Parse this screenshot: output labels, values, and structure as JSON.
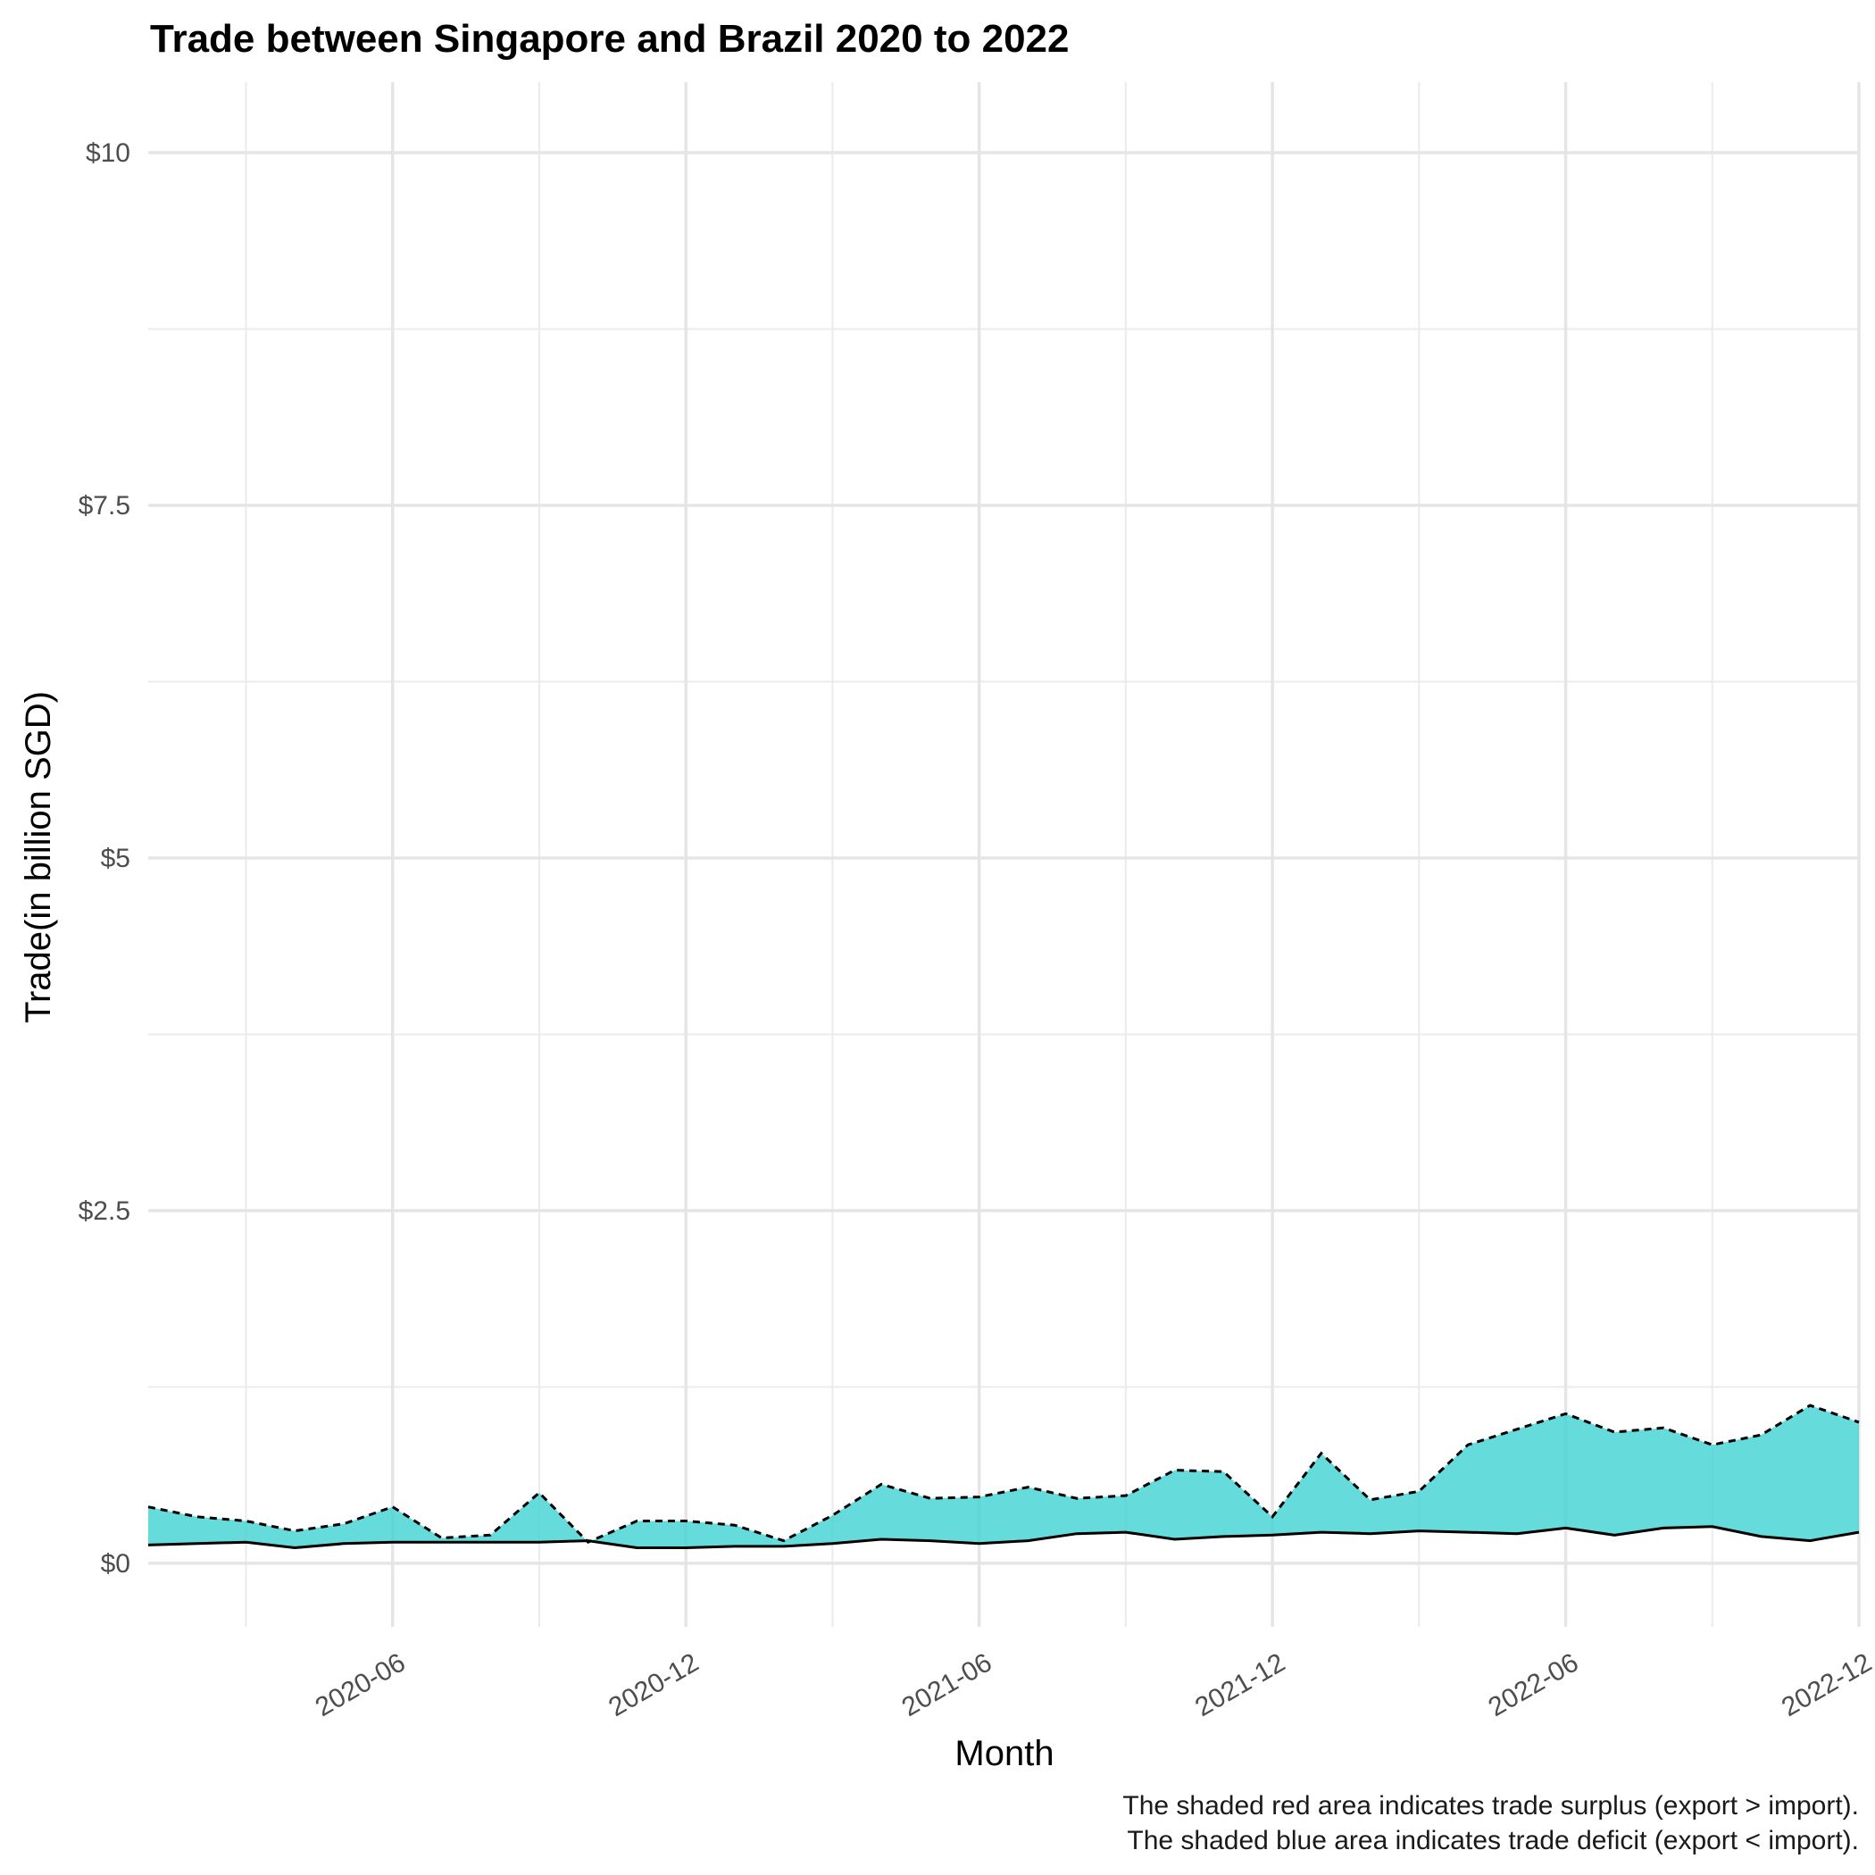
{
  "chart_data": {
    "type": "area",
    "title": "Trade between Singapore and Brazil  2020 to 2022",
    "xlabel": "Month",
    "ylabel": "Trade(in billion SGD)",
    "ylim": [
      -0.45,
      10.5
    ],
    "xlim": [
      "2020-01",
      "2022-12"
    ],
    "grid": true,
    "y_ticks": [
      0,
      2.5,
      5,
      7.5,
      10
    ],
    "y_tick_labels": [
      "$0",
      "$2.5",
      "$5",
      "$7.5",
      "$10"
    ],
    "x_ticks": [
      "2020-06",
      "2020-12",
      "2021-06",
      "2021-12",
      "2022-06",
      "2022-12"
    ],
    "x_tick_labels": [
      "2020-06",
      "2020-12",
      "2021-06",
      "2021-12",
      "2022-06",
      "2022-12"
    ],
    "x": [
      "2020-01",
      "2020-02",
      "2020-03",
      "2020-04",
      "2020-05",
      "2020-06",
      "2020-07",
      "2020-08",
      "2020-09",
      "2020-10",
      "2020-11",
      "2020-12",
      "2021-01",
      "2021-02",
      "2021-03",
      "2021-04",
      "2021-05",
      "2021-06",
      "2021-07",
      "2021-08",
      "2021-09",
      "2021-10",
      "2021-11",
      "2021-12",
      "2022-01",
      "2022-02",
      "2022-03",
      "2022-04",
      "2022-05",
      "2022-06",
      "2022-07",
      "2022-08",
      "2022-09",
      "2022-10",
      "2022-11",
      "2022-12"
    ],
    "series": [
      {
        "line_style": "dashed",
        "values": [
          0.4,
          0.33,
          0.3,
          0.23,
          0.28,
          0.4,
          0.18,
          0.2,
          0.5,
          0.15,
          0.3,
          0.3,
          0.27,
          0.16,
          0.34,
          0.56,
          0.46,
          0.47,
          0.54,
          0.46,
          0.48,
          0.66,
          0.65,
          0.33,
          0.78,
          0.45,
          0.51,
          0.84,
          0.95,
          1.06,
          0.93,
          0.96,
          0.84,
          0.91,
          1.12,
          1.0
        ]
      },
      {
        "line_style": "solid",
        "values": [
          0.13,
          0.14,
          0.15,
          0.11,
          0.14,
          0.15,
          0.15,
          0.15,
          0.15,
          0.16,
          0.11,
          0.11,
          0.12,
          0.12,
          0.14,
          0.17,
          0.16,
          0.14,
          0.16,
          0.21,
          0.22,
          0.17,
          0.19,
          0.2,
          0.22,
          0.21,
          0.23,
          0.22,
          0.21,
          0.25,
          0.2,
          0.25,
          0.26,
          0.19,
          0.16,
          0.22
        ]
      }
    ],
    "fill_color": "#3fd2d2",
    "fill_opacity": 0.8,
    "caption_lines": [
      "The shaded red area indicates trade surplus (export > import).",
      "The shaded blue area indicates trade deficit (export < import)."
    ]
  }
}
